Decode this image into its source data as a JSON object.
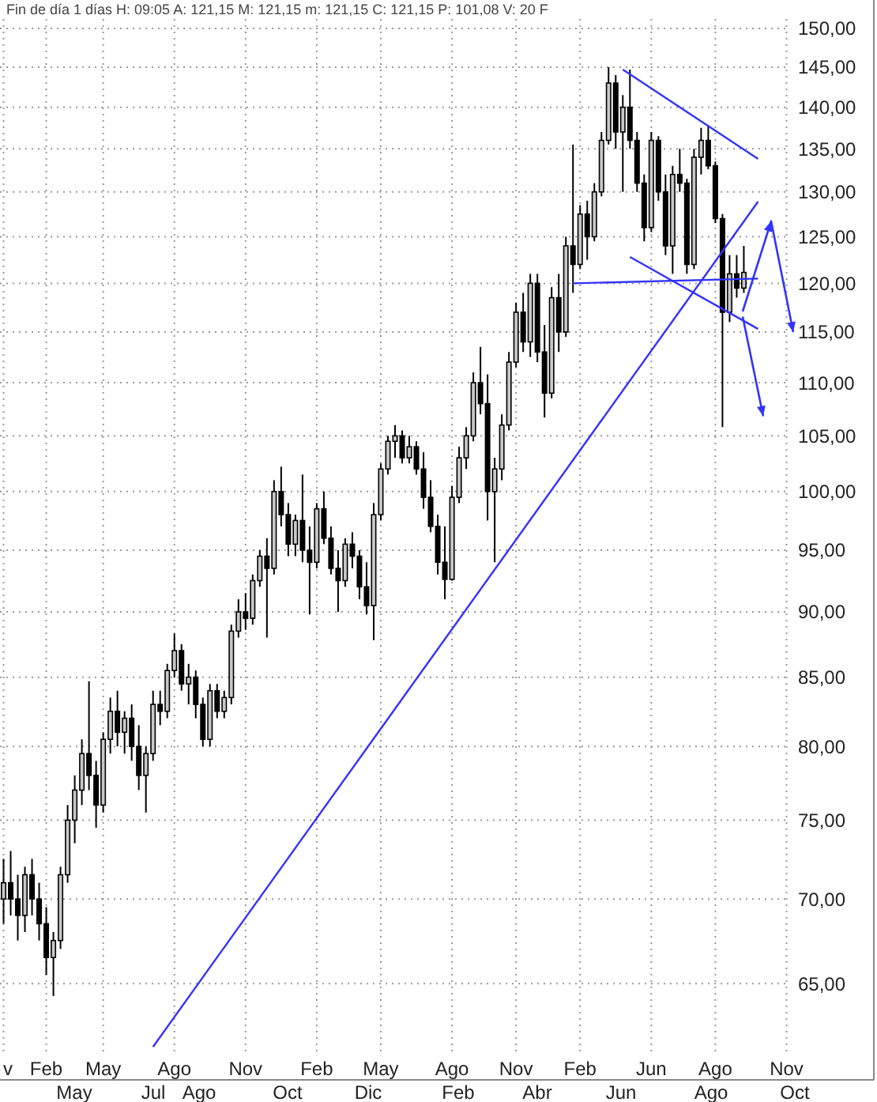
{
  "chart_data": {
    "type": "candlestick",
    "subtitle": "Fin de día 1 días H: 09:05 A: 121,15 M: 121,15 m: 121,15 C: 121,15 P: 101,08 V: 20 F",
    "categories": [
      "v",
      null,
      null,
      null,
      null,
      null,
      "Feb",
      null,
      null,
      null,
      null,
      null,
      null,
      null,
      "May",
      null,
      null,
      null,
      null,
      null,
      null,
      null,
      null,
      null,
      "Ago",
      null,
      null,
      null,
      null,
      null,
      null,
      null,
      null,
      null,
      "Nov",
      null,
      null,
      null,
      null,
      null,
      null,
      null,
      null,
      null,
      "Feb",
      null,
      null,
      null,
      null,
      null,
      null,
      null,
      null,
      "May",
      null,
      null,
      null,
      null,
      null,
      null,
      null,
      null,
      null,
      "Ago",
      null,
      null,
      null,
      null,
      null,
      null,
      null,
      null,
      "Nov",
      null,
      null,
      null,
      null,
      null,
      null,
      null,
      null,
      "Feb",
      null,
      null,
      null,
      null,
      null,
      null,
      null,
      null,
      null,
      "Jun",
      null,
      null,
      null,
      null,
      null,
      null,
      null,
      null,
      "Ago",
      null,
      null,
      null,
      null,
      null,
      null,
      null,
      null,
      null,
      "Nov"
    ],
    "ohlc": [
      [
        70,
        72.5,
        68.5,
        71
      ],
      [
        71,
        73,
        69,
        70
      ],
      [
        70,
        71.5,
        67.5,
        69
      ],
      [
        69,
        72,
        68,
        71.5
      ],
      [
        71.5,
        72.5,
        69,
        70
      ],
      [
        70,
        71,
        67.5,
        68.5
      ],
      [
        68.5,
        69.5,
        65.5,
        66.5
      ],
      [
        66.5,
        68,
        64.3,
        67.5
      ],
      [
        67.5,
        72,
        67,
        71.5
      ],
      [
        71.5,
        76,
        71,
        75
      ],
      [
        75,
        78,
        73.5,
        77
      ],
      [
        77,
        80.5,
        76,
        79.5
      ],
      [
        79.5,
        84.7,
        77,
        78
      ],
      [
        78,
        79,
        74.5,
        76
      ],
      [
        76,
        81,
        75.5,
        80.5
      ],
      [
        80.5,
        83.5,
        79.5,
        82.5
      ],
      [
        82.5,
        84,
        80,
        81
      ],
      [
        81,
        82.5,
        79.5,
        82
      ],
      [
        82,
        83,
        79,
        80
      ],
      [
        80,
        81.5,
        77,
        78
      ],
      [
        78,
        80,
        75.5,
        79.5
      ],
      [
        79.5,
        84,
        79,
        83
      ],
      [
        83,
        84,
        81.5,
        82.5
      ],
      [
        82.5,
        86,
        82,
        85.5
      ],
      [
        85.5,
        88.3,
        85,
        87
      ],
      [
        87,
        87.5,
        84,
        84.5
      ],
      [
        84.5,
        86,
        83,
        85
      ],
      [
        85,
        85.5,
        82,
        83
      ],
      [
        83,
        83.5,
        80,
        80.5
      ],
      [
        80.5,
        84.5,
        80,
        84
      ],
      [
        84,
        84.5,
        82,
        82.5
      ],
      [
        82.5,
        84,
        82,
        83.5
      ],
      [
        83.5,
        89,
        83,
        88.5
      ],
      [
        88.5,
        91,
        88,
        90
      ],
      [
        90,
        91.5,
        88.6,
        89.5
      ],
      [
        89.5,
        93,
        89,
        92.5
      ],
      [
        92.5,
        95,
        92,
        94.5
      ],
      [
        94.5,
        96,
        88,
        93.5
      ],
      [
        93.5,
        101,
        93,
        100
      ],
      [
        100,
        102.2,
        97,
        98
      ],
      [
        98,
        99,
        94.5,
        95.5
      ],
      [
        95.5,
        98,
        94.5,
        97.5
      ],
      [
        97.5,
        101.5,
        94,
        95
      ],
      [
        95,
        97,
        89.8,
        94
      ],
      [
        94,
        99,
        93.5,
        98.5
      ],
      [
        98.5,
        100,
        95.5,
        96
      ],
      [
        96,
        97,
        93,
        93.5
      ],
      [
        93.5,
        95,
        90,
        92.5
      ],
      [
        92.5,
        96,
        92,
        95.5
      ],
      [
        95.5,
        96.5,
        93.5,
        94.5
      ],
      [
        94.5,
        95,
        91,
        92
      ],
      [
        92,
        94,
        89.8,
        90.5
      ],
      [
        90.5,
        99,
        87.8,
        98
      ],
      [
        98,
        102.5,
        97.5,
        102
      ],
      [
        102,
        105,
        101.5,
        104.5
      ],
      [
        104.5,
        106,
        103,
        105
      ],
      [
        105,
        105.5,
        102.5,
        103
      ],
      [
        103,
        105,
        102.5,
        104
      ],
      [
        104,
        104.5,
        101.5,
        102
      ],
      [
        102,
        103.5,
        98.5,
        99.5
      ],
      [
        99.5,
        101,
        96.5,
        97
      ],
      [
        97,
        98,
        93,
        94
      ],
      [
        94,
        97,
        91,
        92.6
      ],
      [
        92.6,
        100.5,
        92.5,
        99.5
      ],
      [
        99.5,
        104,
        99,
        103
      ],
      [
        103,
        105.8,
        102,
        105
      ],
      [
        105,
        111,
        104.5,
        110
      ],
      [
        110,
        113.5,
        107,
        108
      ],
      [
        108,
        110.8,
        97.5,
        100
      ],
      [
        100,
        103,
        94,
        102
      ],
      [
        102,
        107,
        101,
        106
      ],
      [
        106,
        113,
        105.5,
        112
      ],
      [
        112,
        118,
        111.5,
        117
      ],
      [
        117,
        119,
        113,
        114
      ],
      [
        114,
        121,
        112.5,
        120
      ],
      [
        120,
        121,
        112,
        113
      ],
      [
        113,
        115.7,
        106.7,
        109
      ],
      [
        109,
        119.6,
        108.5,
        118.5
      ],
      [
        118.5,
        121,
        113,
        115
      ],
      [
        115,
        125,
        114.5,
        124
      ],
      [
        124,
        135.5,
        119,
        122
      ],
      [
        122,
        128.5,
        121.5,
        127.5
      ],
      [
        127.5,
        129,
        122.5,
        125
      ],
      [
        125,
        131,
        124.5,
        130
      ],
      [
        130,
        137,
        129.5,
        136
      ],
      [
        136,
        145,
        135.5,
        143
      ],
      [
        143,
        144,
        135,
        137
      ],
      [
        137,
        141.5,
        130,
        140
      ],
      [
        140,
        144.7,
        135,
        136
      ],
      [
        136,
        137,
        130,
        131
      ],
      [
        131,
        132,
        124.5,
        126
      ],
      [
        126,
        137,
        125.5,
        136
      ],
      [
        136,
        136.5,
        129,
        130
      ],
      [
        130,
        132,
        123,
        124
      ],
      [
        124,
        133,
        121,
        132
      ],
      [
        132,
        135,
        130,
        131
      ],
      [
        131,
        131.5,
        121,
        122
      ],
      [
        122,
        135,
        121.5,
        134
      ],
      [
        134,
        137.5,
        132,
        136
      ],
      [
        136,
        137.8,
        132.6,
        133
      ],
      [
        133,
        133.5,
        126.5,
        127
      ],
      [
        127,
        127.5,
        105.8,
        117
      ],
      [
        117,
        123,
        116,
        121
      ],
      [
        121,
        123,
        118.5,
        119.5
      ],
      [
        119.5,
        124,
        119,
        121.15
      ],
      null,
      null,
      null,
      null,
      null,
      null
    ],
    "series": [
      {
        "type": "line",
        "color": "#3333ff",
        "values": [
          null,
          null,
          null,
          null,
          null,
          null,
          null,
          null,
          null,
          null,
          null,
          null,
          null,
          null,
          null,
          null,
          null,
          null,
          null,
          null,
          null,
          61.5,
          null,
          null,
          null,
          null,
          null,
          null,
          null,
          null,
          null,
          null,
          null,
          null,
          null,
          null,
          null,
          null,
          null,
          null,
          null,
          null,
          null,
          null,
          null,
          null,
          null,
          null,
          null,
          null,
          null,
          null,
          null,
          null,
          null,
          null,
          null,
          null,
          null,
          null,
          null,
          null,
          null,
          null,
          null,
          null,
          null,
          null,
          null,
          null,
          null,
          null,
          null,
          null,
          null,
          null,
          null,
          null,
          null,
          null,
          null,
          null,
          null,
          null,
          null,
          null,
          null,
          null,
          null,
          null,
          null,
          null,
          null,
          null,
          null,
          null,
          null,
          null,
          null,
          null,
          null,
          null,
          null,
          null,
          null,
          null,
          128.9,
          null,
          null,
          null,
          null
        ]
      },
      {
        "type": "line",
        "color": "#3333ff",
        "values": [
          null,
          null,
          null,
          null,
          null,
          null,
          null,
          null,
          null,
          null,
          null,
          null,
          null,
          null,
          null,
          null,
          null,
          null,
          null,
          null,
          null,
          null,
          null,
          null,
          null,
          null,
          null,
          null,
          null,
          null,
          null,
          null,
          null,
          null,
          null,
          null,
          null,
          null,
          null,
          null,
          null,
          null,
          null,
          null,
          null,
          null,
          null,
          null,
          null,
          null,
          null,
          null,
          null,
          null,
          null,
          null,
          null,
          null,
          null,
          null,
          null,
          null,
          null,
          null,
          null,
          null,
          null,
          null,
          null,
          null,
          null,
          null,
          null,
          null,
          null,
          null,
          null,
          null,
          null,
          null,
          null,
          null,
          null,
          null,
          null,
          null,
          null,
          144.7,
          null,
          null,
          null,
          null,
          null,
          null,
          null,
          null,
          null,
          null,
          null,
          null,
          null,
          null,
          null,
          null,
          null,
          null,
          133.8,
          null,
          null,
          null,
          null
        ]
      },
      {
        "type": "line",
        "color": "#3333ff",
        "values": [
          null,
          null,
          null,
          null,
          null,
          null,
          null,
          null,
          null,
          null,
          null,
          null,
          null,
          null,
          null,
          null,
          null,
          null,
          null,
          null,
          null,
          null,
          null,
          null,
          null,
          null,
          null,
          null,
          null,
          null,
          null,
          null,
          null,
          null,
          null,
          null,
          null,
          null,
          null,
          null,
          null,
          null,
          null,
          null,
          null,
          null,
          null,
          null,
          null,
          null,
          null,
          null,
          null,
          null,
          null,
          null,
          null,
          null,
          null,
          null,
          null,
          null,
          null,
          null,
          null,
          null,
          null,
          null,
          null,
          null,
          null,
          null,
          null,
          null,
          null,
          null,
          null,
          null,
          null,
          null,
          null,
          null,
          null,
          null,
          null,
          null,
          null,
          null,
          122.8,
          null,
          null,
          null,
          null,
          null,
          null,
          null,
          null,
          null,
          null,
          null,
          null,
          null,
          null,
          null,
          null,
          null,
          115.3,
          null,
          null,
          null,
          null
        ]
      },
      {
        "type": "line",
        "color": "#3333ff",
        "values": [
          null,
          null,
          null,
          null,
          null,
          null,
          null,
          null,
          null,
          null,
          null,
          null,
          null,
          null,
          null,
          null,
          null,
          null,
          null,
          null,
          null,
          null,
          null,
          null,
          null,
          null,
          null,
          null,
          null,
          null,
          null,
          null,
          null,
          null,
          null,
          null,
          null,
          null,
          null,
          null,
          null,
          null,
          null,
          null,
          null,
          null,
          null,
          null,
          null,
          null,
          null,
          null,
          null,
          null,
          null,
          null,
          null,
          null,
          null,
          null,
          null,
          null,
          null,
          null,
          null,
          null,
          null,
          null,
          null,
          null,
          null,
          null,
          null,
          null,
          null,
          null,
          null,
          null,
          null,
          null,
          120,
          null,
          null,
          null,
          null,
          null,
          null,
          null,
          null,
          null,
          null,
          null,
          null,
          null,
          null,
          null,
          null,
          null,
          null,
          null,
          null,
          null,
          null,
          null,
          null,
          null,
          120.5,
          null,
          null,
          null,
          null
        ]
      }
    ],
    "log": true,
    "grid": true,
    "marker": "none",
    "annotations": [
      "May",
      "Jul",
      "Ago",
      "Oct",
      "Dic",
      "Feb",
      "Abr",
      "Jun",
      "Ago",
      "Oct"
    ],
    "ylim": [
      61,
      151.25
    ],
    "yticks": [
      {
        "value": 65,
        "label": "65,00"
      },
      {
        "value": 70,
        "label": "70,00"
      },
      {
        "value": 75,
        "label": "75,00"
      },
      {
        "value": 80,
        "label": "80,00"
      },
      {
        "value": 85,
        "label": "85,00"
      },
      {
        "value": 90,
        "label": "90,00"
      },
      {
        "value": 95,
        "label": "95,00"
      },
      {
        "value": 100,
        "label": "100,00"
      },
      {
        "value": 105,
        "label": "105,00"
      },
      {
        "value": 110,
        "label": "110,00"
      },
      {
        "value": 115,
        "label": "115,00"
      },
      {
        "value": 120,
        "label": "120,00"
      },
      {
        "value": 125,
        "label": "125,00"
      },
      {
        "value": 130,
        "label": "130,00"
      },
      {
        "value": 135,
        "label": "135,00"
      },
      {
        "value": 140,
        "label": "140,00"
      },
      {
        "value": 145,
        "label": "145,00"
      },
      {
        "value": 150,
        "label": "150,00"
      }
    ]
  }
}
